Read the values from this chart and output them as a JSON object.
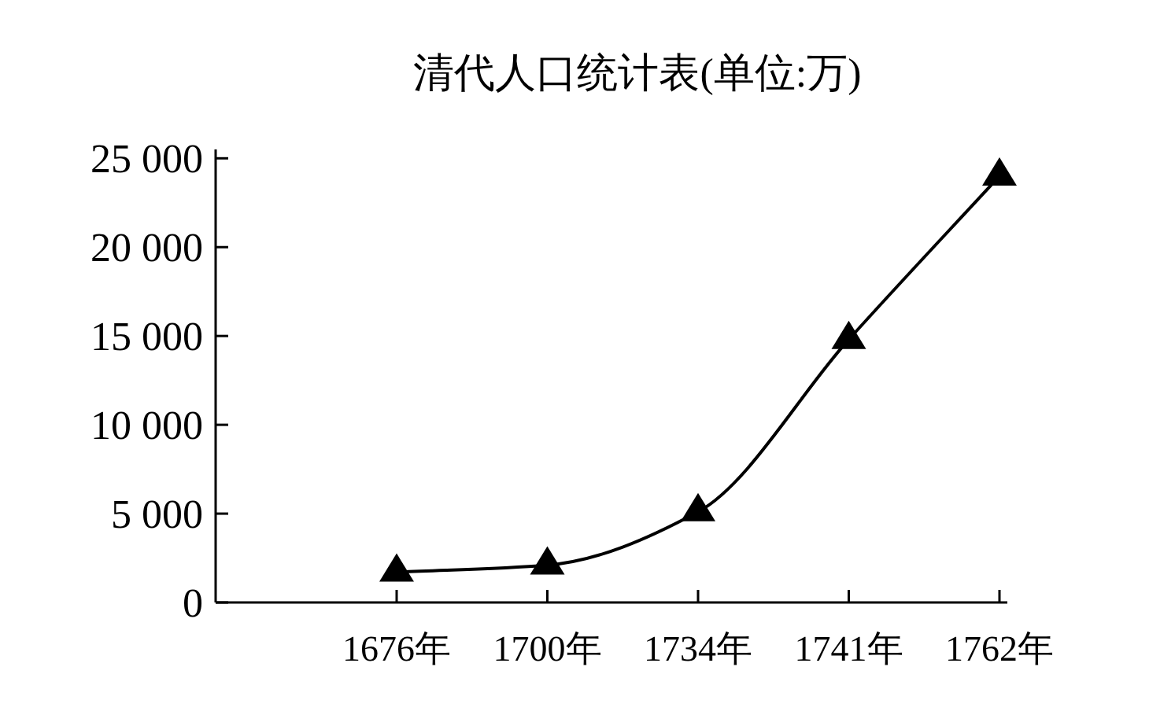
{
  "chart_data": {
    "type": "line",
    "title": "清代人口统计表(单位:万)",
    "categories": [
      "1676年",
      "1700年",
      "1734年",
      "1741年",
      "1762年"
    ],
    "series": [
      {
        "color": "#000000",
        "values": [
          1700,
          2100,
          5100,
          14800,
          24000
        ]
      }
    ],
    "ylim": [
      0,
      25500
    ],
    "yticks": [
      0,
      {
        "value": 5000,
        "label": "5 000"
      },
      {
        "value": 10000,
        "label": "10 000"
      },
      {
        "value": 15000,
        "label": "15 000"
      },
      {
        "value": 20000,
        "label": "20 000"
      },
      {
        "value": 25000,
        "label": "25 000"
      }
    ],
    "marker": "triangle",
    "line_style": "solid",
    "grid": false
  }
}
